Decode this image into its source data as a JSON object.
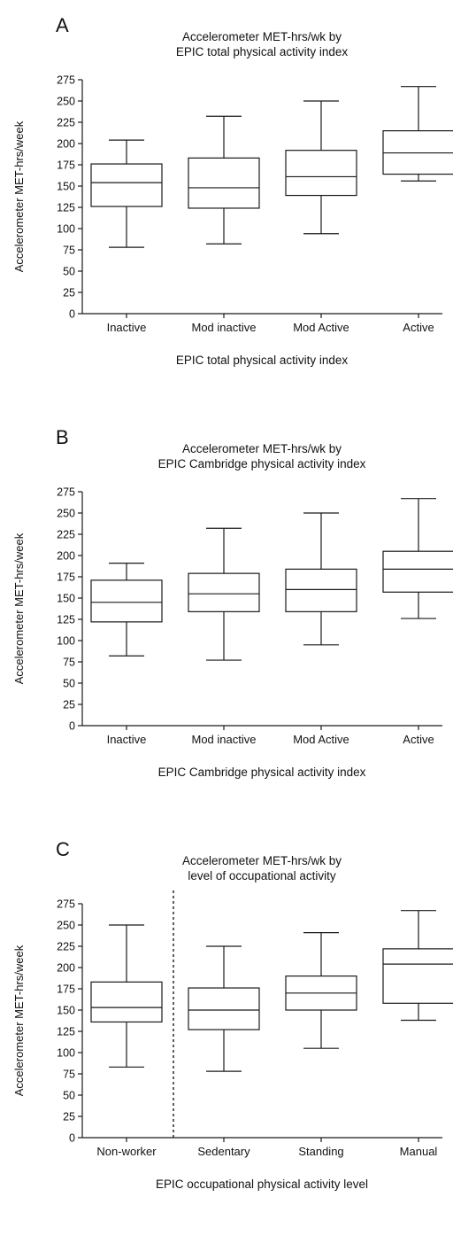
{
  "chart_data": [
    {
      "type": "box",
      "panel_label": "A",
      "title": [
        "Accelerometer MET-hrs/wk by",
        "EPIC total physical activity index"
      ],
      "xlabel": "EPIC total physical activity index",
      "ylabel": "Accelerometer MET-hrs/week",
      "ylim": [
        0,
        275
      ],
      "yticks": [
        0,
        25,
        50,
        75,
        100,
        125,
        150,
        175,
        200,
        225,
        250,
        275
      ],
      "categories": [
        "Inactive",
        "Mod inactive",
        "Mod Active",
        "Active"
      ],
      "boxes": [
        {
          "min": 78,
          "q1": 126,
          "median": 154,
          "q3": 176,
          "max": 204
        },
        {
          "min": 82,
          "q1": 124,
          "median": 148,
          "q3": 183,
          "max": 232
        },
        {
          "min": 94,
          "q1": 139,
          "median": 161,
          "q3": 192,
          "max": 250
        },
        {
          "min": 156,
          "q1": 164,
          "median": 189,
          "q3": 215,
          "max": 267
        }
      ],
      "divider_after": null
    },
    {
      "type": "box",
      "panel_label": "B",
      "title": [
        "Accelerometer MET-hrs/wk by",
        "EPIC Cambridge physical activity index"
      ],
      "xlabel": "EPIC Cambridge physical activity index",
      "ylabel": "Accelerometer MET-hrs/week",
      "ylim": [
        0,
        275
      ],
      "yticks": [
        0,
        25,
        50,
        75,
        100,
        125,
        150,
        175,
        200,
        225,
        250,
        275
      ],
      "categories": [
        "Inactive",
        "Mod inactive",
        "Mod Active",
        "Active"
      ],
      "boxes": [
        {
          "min": 82,
          "q1": 122,
          "median": 145,
          "q3": 171,
          "max": 191
        },
        {
          "min": 77,
          "q1": 134,
          "median": 155,
          "q3": 179,
          "max": 232
        },
        {
          "min": 95,
          "q1": 134,
          "median": 160,
          "q3": 184,
          "max": 250
        },
        {
          "min": 126,
          "q1": 157,
          "median": 184,
          "q3": 205,
          "max": 267
        }
      ],
      "divider_after": null
    },
    {
      "type": "box",
      "panel_label": "C",
      "title": [
        "Accelerometer MET-hrs/wk by",
        "level of occupational activity"
      ],
      "xlabel": "EPIC occupational physical activity level",
      "ylabel": "Accelerometer MET-hrs/week",
      "ylim": [
        0,
        275
      ],
      "yticks": [
        0,
        25,
        50,
        75,
        100,
        125,
        150,
        175,
        200,
        225,
        250,
        275
      ],
      "categories": [
        "Non-worker",
        "Sedentary",
        "Standing",
        "Manual"
      ],
      "boxes": [
        {
          "min": 83,
          "q1": 136,
          "median": 153,
          "q3": 183,
          "max": 250
        },
        {
          "min": 78,
          "q1": 127,
          "median": 150,
          "q3": 176,
          "max": 225
        },
        {
          "min": 105,
          "q1": 150,
          "median": 170,
          "q3": 190,
          "max": 241
        },
        {
          "min": 138,
          "q1": 158,
          "median": 204,
          "q3": 222,
          "max": 267
        }
      ],
      "divider_after": 0
    }
  ]
}
